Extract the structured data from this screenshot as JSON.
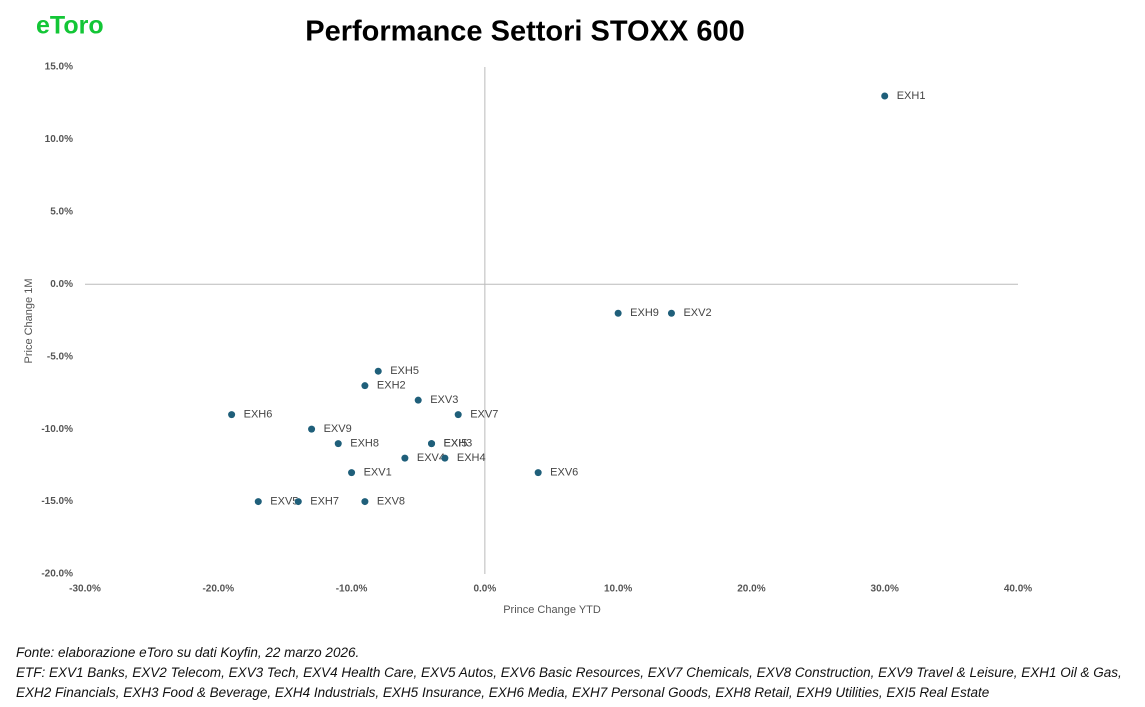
{
  "logo": "eToro",
  "chart_data": {
    "type": "scatter",
    "title": "Performance Settori STOXX 600",
    "xlabel": "Prince Change YTD",
    "ylabel": "Price Change 1M",
    "labels": [
      "EXH1",
      "EXH9",
      "EXV2",
      "EXV6",
      "EXH5",
      "EXH2",
      "EXV3",
      "EXV7",
      "EXH6",
      "EXV9",
      "EXH8",
      "EXH3",
      "EXI5",
      "EXV4",
      "EXH4",
      "EXV1",
      "EXV5",
      "EXH7",
      "EXV8"
    ],
    "x": [
      30,
      10,
      14,
      4,
      -8,
      -9,
      -5,
      -2,
      -19,
      -13,
      -11,
      -4,
      -4,
      -6,
      -3,
      -10,
      -17,
      -14,
      -9
    ],
    "values": [
      13,
      -2,
      -2,
      -13,
      -6,
      -7,
      -8,
      -9,
      -9,
      -10,
      -11,
      -11,
      -11,
      -12,
      -12,
      -13,
      -15,
      -15,
      -15
    ],
    "color": "#1f5f7a",
    "xlim": [
      -30,
      40
    ],
    "xticks": [
      {
        "value": -30,
        "label": "-30.0%"
      },
      {
        "value": -20,
        "label": "-20.0%"
      },
      {
        "value": -10,
        "label": "-10.0%"
      },
      {
        "value": 0,
        "label": "0.0%"
      },
      {
        "value": 10,
        "label": "10.0%"
      },
      {
        "value": 20,
        "label": "20.0%"
      },
      {
        "value": 30,
        "label": "30.0%"
      },
      {
        "value": 40,
        "label": "40.0%"
      }
    ],
    "ylim": [
      -20,
      15
    ],
    "yticks": [
      {
        "value": 15,
        "label": "15.0%"
      },
      {
        "value": 10,
        "label": "10.0%"
      },
      {
        "value": 5,
        "label": "5.0%"
      },
      {
        "value": 0,
        "label": "0.0%"
      },
      {
        "value": -5,
        "label": "-5.0%"
      },
      {
        "value": -10,
        "label": "-10.0%"
      },
      {
        "value": -15,
        "label": "-15.0%"
      },
      {
        "value": -20,
        "label": "-20.0%"
      }
    ],
    "grid": false
  },
  "notes": [
    "Fonte: elaborazione eToro su dati Koyfin, 22 marzo 2026.",
    "ETF: EXV1 Banks, EXV2 Telecom, EXV3 Tech, EXV4 Health Care, EXV5 Autos, EXV6 Basic Resources, EXV7 Chemicals, EXV8 Construction, EXV9 Travel & Leisure, EXH1 Oil & Gas, EXH2 Financials, EXH3 Food & Beverage, EXH4 Industrials, EXH5 Insurance, EXH6 Media, EXH7 Personal Goods, EXH8 Retail, EXH9 Utilities, EXI5 Real Estate"
  ]
}
